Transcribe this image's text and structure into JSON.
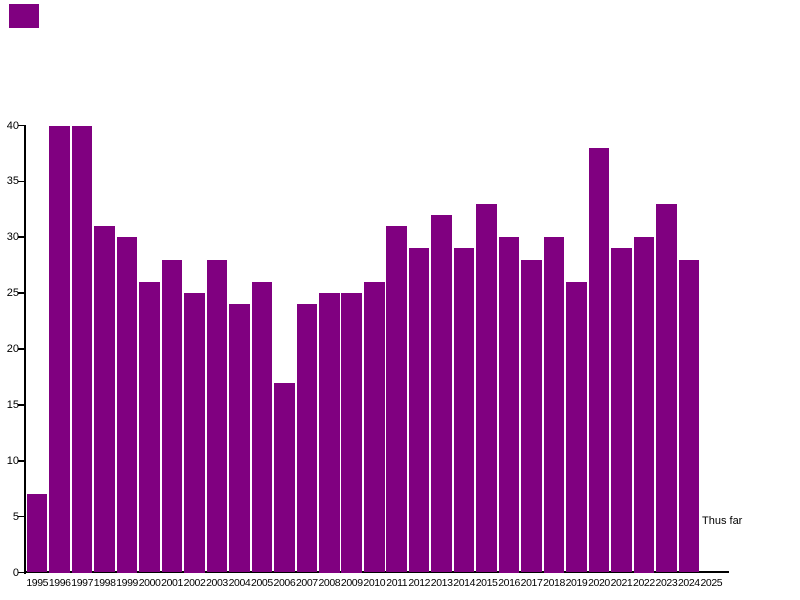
{
  "chart_data": {
    "type": "bar",
    "title": "",
    "xlabel": "",
    "ylabel": "",
    "categories": [
      "1995",
      "1996",
      "1997",
      "1998",
      "1999",
      "2000",
      "2001",
      "2002",
      "2003",
      "2004",
      "2005",
      "2006",
      "2007",
      "2008",
      "2009",
      "2010",
      "2011",
      "2012",
      "2013",
      "2014",
      "2015",
      "2016",
      "2017",
      "2018",
      "2019",
      "2020",
      "2021",
      "2022",
      "2023",
      "2024",
      "2025"
    ],
    "values": [
      7,
      40,
      40,
      31,
      30,
      26,
      28,
      25,
      28,
      24,
      26,
      17,
      24,
      25,
      25,
      26,
      31,
      29,
      32,
      29,
      33,
      30,
      28,
      30,
      26,
      38,
      29,
      30,
      33,
      28,
      0
    ],
    "ylim": [
      0,
      40
    ],
    "yticks": [
      0,
      5,
      10,
      15,
      20,
      25,
      30,
      35,
      40
    ],
    "grid": false,
    "legend_position": "none",
    "bar_color": "#800080",
    "axis_color": "#000000",
    "text_color": "#000000",
    "annotation": {
      "text": "Thus far",
      "near_category": "2025",
      "y_value": 4.5
    }
  },
  "corner_swatch": {
    "color": "#800080"
  }
}
